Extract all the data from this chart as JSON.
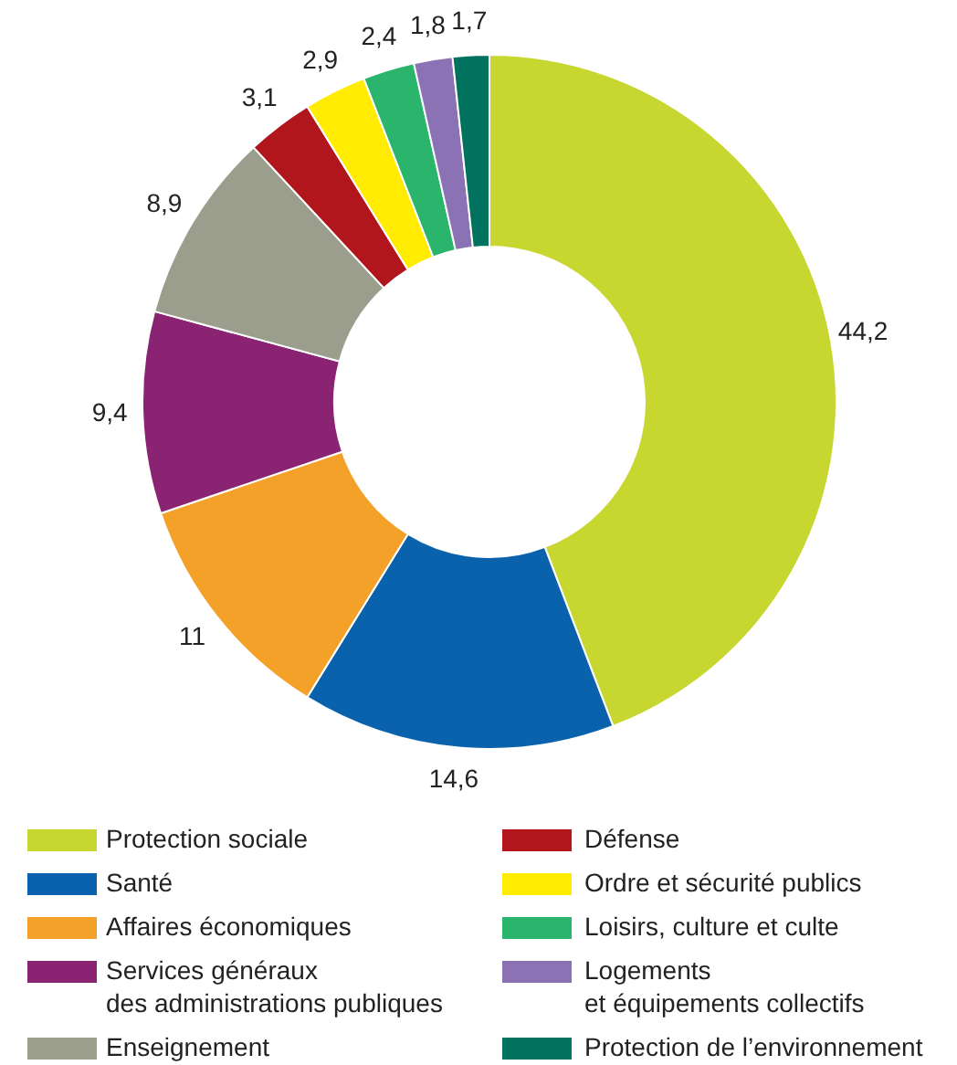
{
  "chart_data": {
    "type": "donut",
    "categories": [
      "Protection sociale",
      "Santé",
      "Affaires économiques",
      "Services généraux\ndes administrations publiques",
      "Enseignement",
      "Défense",
      "Ordre et sécurité publics",
      "Loisirs, culture et culte",
      "Logements\net équipements collectifs",
      "Protection de l’environnement"
    ],
    "values": [
      44.2,
      14.6,
      11,
      9.4,
      8.9,
      3.1,
      2.9,
      2.4,
      1.8,
      1.7
    ],
    "value_labels": [
      "44,2",
      "14,6",
      "11",
      "9,4",
      "8,9",
      "3,1",
      "2,9",
      "2,4",
      "1,8",
      "1,7"
    ],
    "colors": [
      "#c8d630",
      "#0a62ad",
      "#f4a12a",
      "#8a2472",
      "#9b9e8c",
      "#b0161c",
      "#ffec00",
      "#2bb56c",
      "#8b72b4",
      "#00725e"
    ],
    "legend": "bottom"
  }
}
